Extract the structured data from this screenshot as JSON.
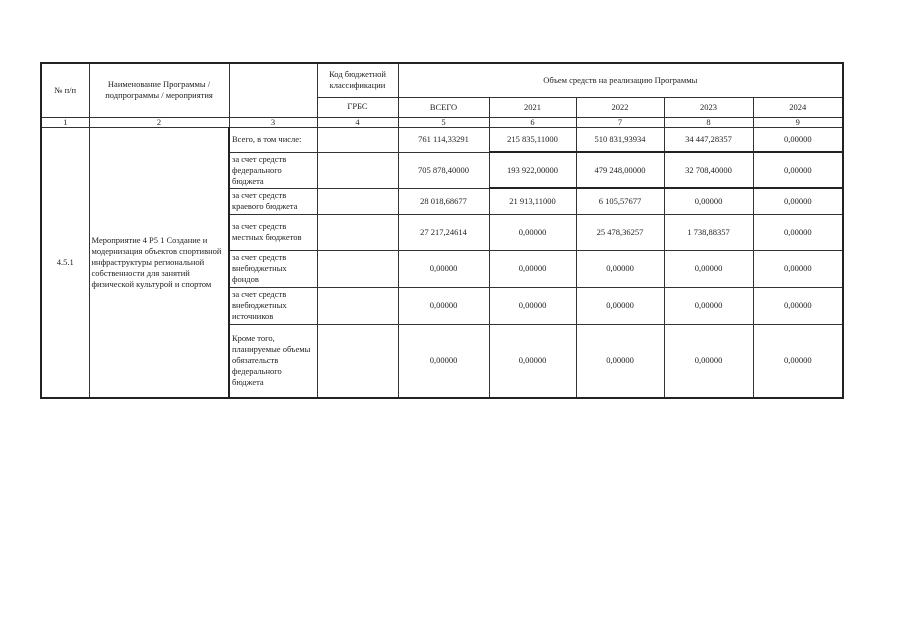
{
  "header": {
    "col_num": "№ п/п",
    "col_name": "Наименование  Программы / подпрограммы / мероприятия",
    "col_code": "Код бюджетной классификации",
    "col_volume": "Объем средств на реализацию Программы",
    "col_grbs": "ГРБС",
    "col_total": "ВСЕГО",
    "years": [
      "2021",
      "2022",
      "2023",
      "2024"
    ],
    "col_numbers": [
      "1",
      "2",
      "3",
      "4",
      "5",
      "6",
      "7",
      "8",
      "9"
    ]
  },
  "activity": {
    "number": "4.5.1",
    "name": "Мероприятие 4 Р5 1 Создание и модернизация объектов спортивной инфраструктуры региональной собственности для занятий физической культурой и спортом"
  },
  "rows": [
    {
      "source": "Всего, в том числе:",
      "grbs": "",
      "total": "761 114,33291",
      "y2021": "215 835,11000",
      "y2022": "510 831,93934",
      "y2023": "34 447,28357",
      "y2024": "0,00000"
    },
    {
      "source": "за счет средств федерального бюджета",
      "grbs": "",
      "total": "705 878,40000",
      "y2021": "193 922,00000",
      "y2022": "479 248,00000",
      "y2023": "32 708,40000",
      "y2024": "0,00000"
    },
    {
      "source": "за счет средств краевого бюджета",
      "grbs": "",
      "total": "28 018,68677",
      "y2021": "21 913,11000",
      "y2022": "6 105,57677",
      "y2023": "0,00000",
      "y2024": "0,00000"
    },
    {
      "source": "за счет средств местных бюджетов",
      "grbs": "",
      "total": "27 217,24614",
      "y2021": "0,00000",
      "y2022": "25 478,36257",
      "y2023": "1 738,88357",
      "y2024": "0,00000"
    },
    {
      "source": "за счет средств внебюджетных фондов",
      "grbs": "",
      "total": "0,00000",
      "y2021": "0,00000",
      "y2022": "0,00000",
      "y2023": "0,00000",
      "y2024": "0,00000"
    },
    {
      "source": "за счет средств внебюджетных источников",
      "grbs": "",
      "total": "0,00000",
      "y2021": "0,00000",
      "y2022": "0,00000",
      "y2023": "0,00000",
      "y2024": "0,00000"
    },
    {
      "source": "Кроме того, планируемые объемы обязательств федерального бюджета",
      "grbs": "",
      "total": "0,00000",
      "y2021": "0,00000",
      "y2022": "0,00000",
      "y2023": "0,00000",
      "y2024": "0,00000"
    }
  ]
}
